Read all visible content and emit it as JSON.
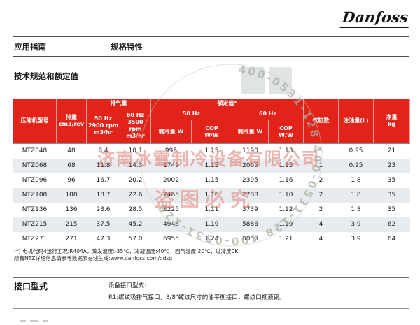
{
  "brand": {
    "logo_text": "Danfoss"
  },
  "header": {
    "doc_type": "应用指南",
    "doc_subtitle": "规格特性"
  },
  "section1": {
    "title": "技术规范和额定值"
  },
  "table": {
    "head": {
      "model": "压缩机型号",
      "displacement_l1": "排量",
      "displacement_l2": "cm3/rev",
      "swept_group": "排气量",
      "swept_50_l1": "50 Hz",
      "swept_50_l2": "2900 rpm",
      "swept_50_l3": "m3/hr",
      "swept_60_l1": "60 Hz",
      "swept_60_l2": "3500 rpm",
      "swept_60_l3": "m3/hr",
      "rated_group": "额定值*",
      "rated_50": "50 Hz",
      "rated_60": "60 Hz",
      "cooling_50": "制冷量 W",
      "cop_50_l1": "COP",
      "cop_50_l2": "W/W",
      "cooling_60": "制冷量 W",
      "cop_60_l1": "COP",
      "cop_60_l2": "W/W",
      "cylinders": "气缸数",
      "oil": "注油量(L)",
      "weight_l1": "净重",
      "weight_l2": "kg"
    },
    "rows": [
      [
        "NTZ048",
        "48",
        "8.4",
        "10.1",
        "995",
        "1.15",
        "1190",
        "1.13",
        "1",
        "0.95",
        "21"
      ],
      [
        "NTZ068",
        "68",
        "11.8",
        "14.3",
        "1749",
        "1.15",
        "2065",
        "1.15",
        "1",
        "0.95",
        "23"
      ],
      [
        "NTZ096",
        "96",
        "16.7",
        "20.2",
        "2002",
        "1.15",
        "2395",
        "1.16",
        "2",
        "1.8",
        "35"
      ],
      [
        "NTZ108",
        "108",
        "18.7",
        "22.6",
        "2465",
        "1.16",
        "2788",
        "1.10",
        "2",
        "1.8",
        "35"
      ],
      [
        "NTZ136",
        "136",
        "23.6",
        "28.5",
        "3225",
        "1.11",
        "3739",
        "1.12",
        "2",
        "1.8",
        "35"
      ],
      [
        "NTZ215",
        "215",
        "37.5",
        "45.2",
        "4948",
        "1.19",
        "5886",
        "1.19",
        "4",
        "3.9",
        "62"
      ],
      [
        "NTZ271",
        "271",
        "47.3",
        "57.0",
        "6955",
        "1.24",
        "8058",
        "1.21",
        "4",
        "3.9",
        "64"
      ]
    ]
  },
  "footnotes": {
    "line1": "(*) 电机代码4运行工况:R404A，蒸发温度:-35℃，冷凝温度:40℃，回气温度:20℃，过冷度0K",
    "line2": "所有NTZ详细信息请参考数据表在线生成:www.danfoss.com/odsg"
  },
  "section2": {
    "title": "接口型式",
    "line1": "设备接口型式:",
    "line2": "R1:螺纹吸排气接口，3/8\"螺纹尺寸的油平衡接口，螺纹口视液镜。"
  },
  "watermark": {
    "stamp_arc_text": "400-0531-128          400-0531-128          400-0531-128",
    "company": "济南冰雪制冷设备有限公司",
    "warning": "盗图必究"
  },
  "colors": {
    "brand_red": "#e2231a",
    "row_alt": "#e9ecef",
    "watermark_red": "#e07d72",
    "watermark_gray": "#aab0a4"
  }
}
